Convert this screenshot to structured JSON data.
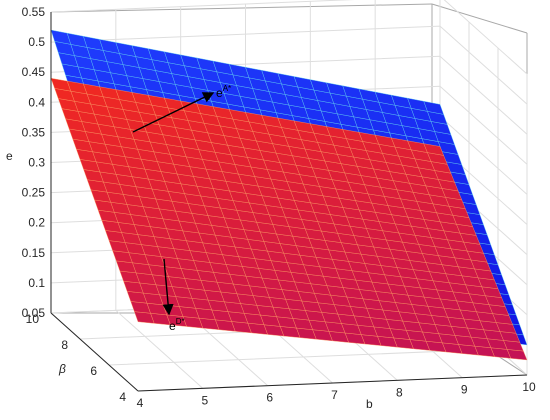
{
  "chart_data": {
    "type": "surface",
    "axes": {
      "x": {
        "label": "b",
        "range": [
          4,
          10
        ],
        "ticks": [
          4,
          5,
          6,
          7,
          8,
          9,
          10
        ]
      },
      "y": {
        "label": "β",
        "range": [
          4,
          10
        ],
        "ticks": [
          4,
          6,
          8,
          10
        ]
      },
      "z": {
        "label": "e",
        "range": [
          0.05,
          0.55
        ],
        "ticks": [
          0.05,
          0.1,
          0.15,
          0.2,
          0.25,
          0.3,
          0.35,
          0.4,
          0.45,
          0.5,
          0.55
        ]
      }
    },
    "grid": true,
    "series": [
      {
        "annotation": "e^{A*}",
        "label_base": "e",
        "label_sup": "A*",
        "color_low": "#1010e0",
        "color_high": "#2040ff",
        "edge_color": "#5fd0f0",
        "corners": {
          "b4_beta4": 0.2,
          "b10_beta4": 0.1,
          "b4_beta10": 0.52,
          "b10_beta10": 0.37
        }
      },
      {
        "annotation": "e^{D*}",
        "label_base": "e",
        "label_sup": "D*",
        "color_low": "#c0105a",
        "color_high": "#ff3010",
        "edge_color": "#ff9a60",
        "corners": {
          "b4_beta4": 0.165,
          "b10_beta4": 0.075,
          "b4_beta10": 0.44,
          "b10_beta10": 0.3
        }
      }
    ],
    "annotations": [
      {
        "text_base": "e",
        "text_sup": "A*",
        "points_to": "e^{A*} surface"
      },
      {
        "text_base": "e",
        "text_sup": "D*",
        "points_to": "e^{D*} surface"
      }
    ]
  }
}
